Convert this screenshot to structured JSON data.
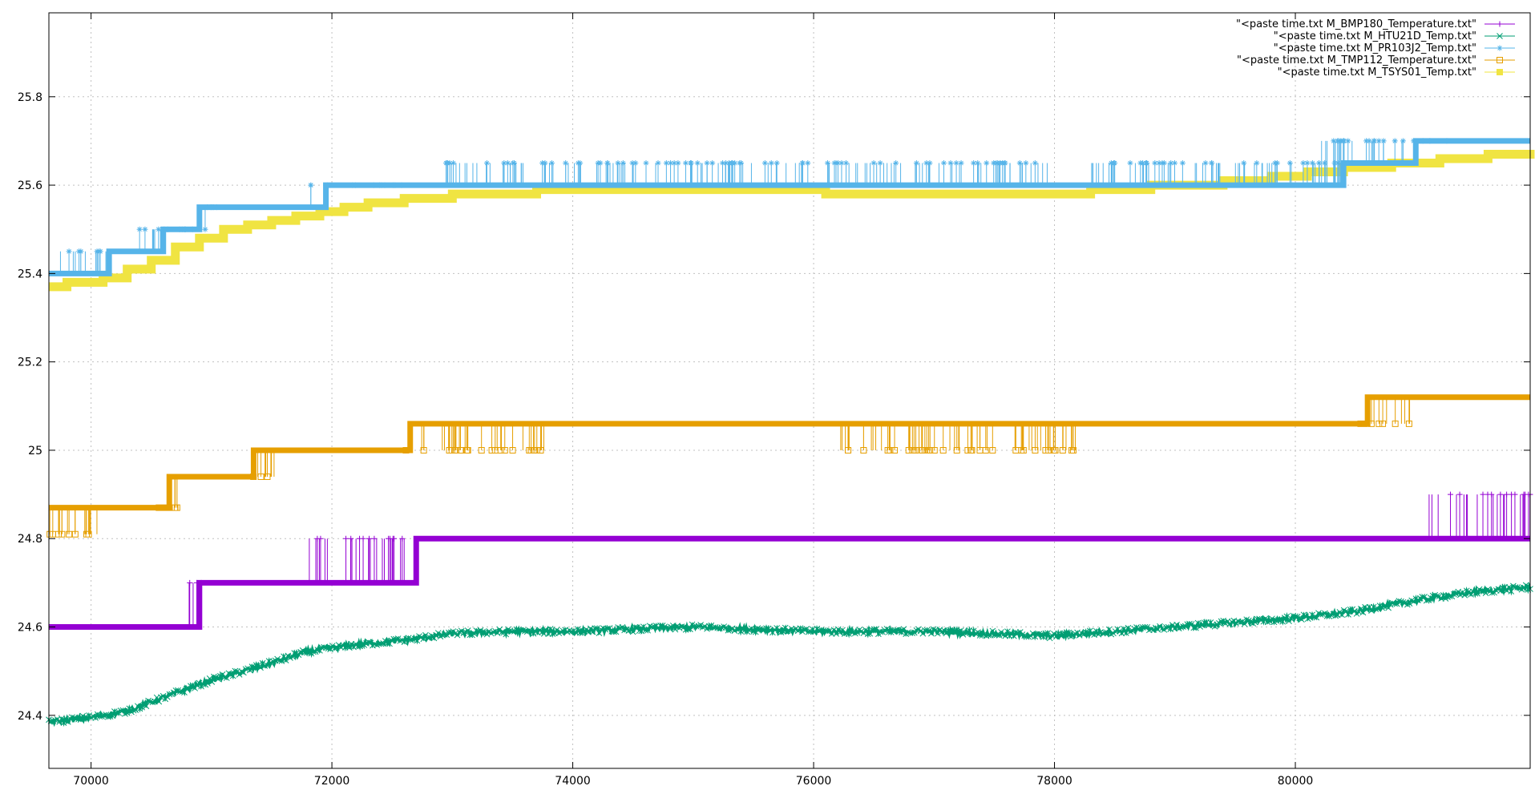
{
  "chart_data": {
    "type": "line",
    "title": "",
    "xlabel": "",
    "ylabel": "",
    "xlim": [
      69650,
      81950
    ],
    "ylim": [
      24.28,
      25.99
    ],
    "grid": true,
    "grid_style": "dotted",
    "legend_position": "top-right",
    "x_ticks": [
      70000,
      72000,
      74000,
      76000,
      78000,
      80000
    ],
    "x_tick_labels": [
      "70000",
      "72000",
      "74000",
      "76000",
      "78000",
      "80000"
    ],
    "y_ticks": [
      24.4,
      24.6,
      24.8,
      25,
      25.2,
      25.4,
      25.6,
      25.8
    ],
    "y_tick_labels": [
      "24.4",
      "24.6",
      "24.8",
      "25",
      "25.2",
      "25.4",
      "25.6",
      "25.8"
    ],
    "series": [
      {
        "name": "\"<paste time.txt M_BMP180_Temperature.txt\"",
        "color": "#9400d3",
        "marker": "plus",
        "step": true,
        "base": [
          [
            69650,
            24.6
          ],
          [
            70900,
            24.6
          ],
          [
            70900,
            24.7
          ],
          [
            72700,
            24.7
          ],
          [
            72700,
            24.8
          ],
          [
            81950,
            24.8
          ]
        ],
        "spikes": [
          {
            "from": 70800,
            "to": 70920,
            "value": 24.7
          },
          {
            "from": 71800,
            "to": 72700,
            "value": 24.8
          },
          {
            "from": 81050,
            "to": 81950,
            "value": 24.9
          }
        ]
      },
      {
        "name": "\"<paste time.txt M_HTU21D_Temp.txt\"",
        "color": "#009e73",
        "marker": "x",
        "step": false,
        "points": [
          [
            69650,
            24.385
          ],
          [
            70000,
            24.395
          ],
          [
            70300,
            24.41
          ],
          [
            70600,
            24.44
          ],
          [
            71000,
            24.48
          ],
          [
            71400,
            24.51
          ],
          [
            71800,
            24.545
          ],
          [
            72200,
            24.56
          ],
          [
            72600,
            24.57
          ],
          [
            73000,
            24.585
          ],
          [
            73500,
            24.59
          ],
          [
            74000,
            24.59
          ],
          [
            74500,
            24.595
          ],
          [
            75000,
            24.6
          ],
          [
            75500,
            24.595
          ],
          [
            76000,
            24.59
          ],
          [
            76500,
            24.59
          ],
          [
            77000,
            24.59
          ],
          [
            77500,
            24.585
          ],
          [
            78000,
            24.58
          ],
          [
            78500,
            24.59
          ],
          [
            79000,
            24.6
          ],
          [
            79500,
            24.61
          ],
          [
            80000,
            24.62
          ],
          [
            80500,
            24.635
          ],
          [
            81000,
            24.66
          ],
          [
            81500,
            24.68
          ],
          [
            81950,
            24.69
          ]
        ]
      },
      {
        "name": "\"<paste time.txt M_PR103J2_Temp.txt\"",
        "color": "#56b4e9",
        "marker": "star",
        "step": true,
        "base": [
          [
            69650,
            25.4
          ],
          [
            70150,
            25.4
          ],
          [
            70150,
            25.45
          ],
          [
            70600,
            25.45
          ],
          [
            70600,
            25.5
          ],
          [
            70900,
            25.5
          ],
          [
            70900,
            25.55
          ],
          [
            71950,
            25.55
          ],
          [
            71950,
            25.6
          ],
          [
            80400,
            25.6
          ],
          [
            80400,
            25.65
          ],
          [
            81000,
            25.65
          ],
          [
            81000,
            25.7
          ],
          [
            81950,
            25.7
          ]
        ],
        "spikes": [
          {
            "from": 69700,
            "to": 70200,
            "value": 25.45
          },
          {
            "from": 70400,
            "to": 70950,
            "value": 25.5
          },
          {
            "from": 70900,
            "to": 71200,
            "value": 25.55
          },
          {
            "from": 71800,
            "to": 72600,
            "value": 25.6
          },
          {
            "from": 72900,
            "to": 77950,
            "value": 25.65
          },
          {
            "from": 78300,
            "to": 80600,
            "value": 25.65
          },
          {
            "from": 80200,
            "to": 81300,
            "value": 25.7
          }
        ]
      },
      {
        "name": "\"<paste time.txt M_TMP112_Temperature.txt\"",
        "color": "#e69f00",
        "marker": "square",
        "step": true,
        "base": [
          [
            69650,
            24.87
          ],
          [
            70650,
            24.87
          ],
          [
            70650,
            24.94
          ],
          [
            71350,
            24.94
          ],
          [
            71350,
            25.0
          ],
          [
            72650,
            25.0
          ],
          [
            72650,
            25.06
          ],
          [
            80600,
            25.06
          ],
          [
            80600,
            25.12
          ],
          [
            81950,
            25.12
          ]
        ],
        "spikes": [
          {
            "from": 69650,
            "to": 70100,
            "value": 24.81
          },
          {
            "from": 70550,
            "to": 70750,
            "value": 24.87
          },
          {
            "from": 71250,
            "to": 71550,
            "value": 24.94
          },
          {
            "from": 72600,
            "to": 73800,
            "value": 25.0
          },
          {
            "from": 76200,
            "to": 78300,
            "value": 25.0
          },
          {
            "from": 80500,
            "to": 80950,
            "value": 25.06
          }
        ]
      },
      {
        "name": "\"<paste time.txt M_TSYS01_Temp.txt\"",
        "color": "#f0e442",
        "marker": "filled-square",
        "step": true,
        "points": [
          [
            69650,
            25.37
          ],
          [
            69800,
            25.38
          ],
          [
            70100,
            25.39
          ],
          [
            70300,
            25.41
          ],
          [
            70500,
            25.43
          ],
          [
            70700,
            25.46
          ],
          [
            70900,
            25.48
          ],
          [
            71100,
            25.5
          ],
          [
            71300,
            25.51
          ],
          [
            71500,
            25.52
          ],
          [
            71700,
            25.53
          ],
          [
            71900,
            25.54
          ],
          [
            72100,
            25.55
          ],
          [
            72300,
            25.56
          ],
          [
            72600,
            25.57
          ],
          [
            73000,
            25.58
          ],
          [
            73700,
            25.59
          ],
          [
            75600,
            25.59
          ],
          [
            76100,
            25.58
          ],
          [
            78300,
            25.59
          ],
          [
            78800,
            25.6
          ],
          [
            79400,
            25.61
          ],
          [
            79800,
            25.62
          ],
          [
            80100,
            25.63
          ],
          [
            80400,
            25.64
          ],
          [
            80800,
            25.65
          ],
          [
            81200,
            25.66
          ],
          [
            81600,
            25.67
          ],
          [
            81950,
            25.68
          ]
        ]
      }
    ]
  }
}
